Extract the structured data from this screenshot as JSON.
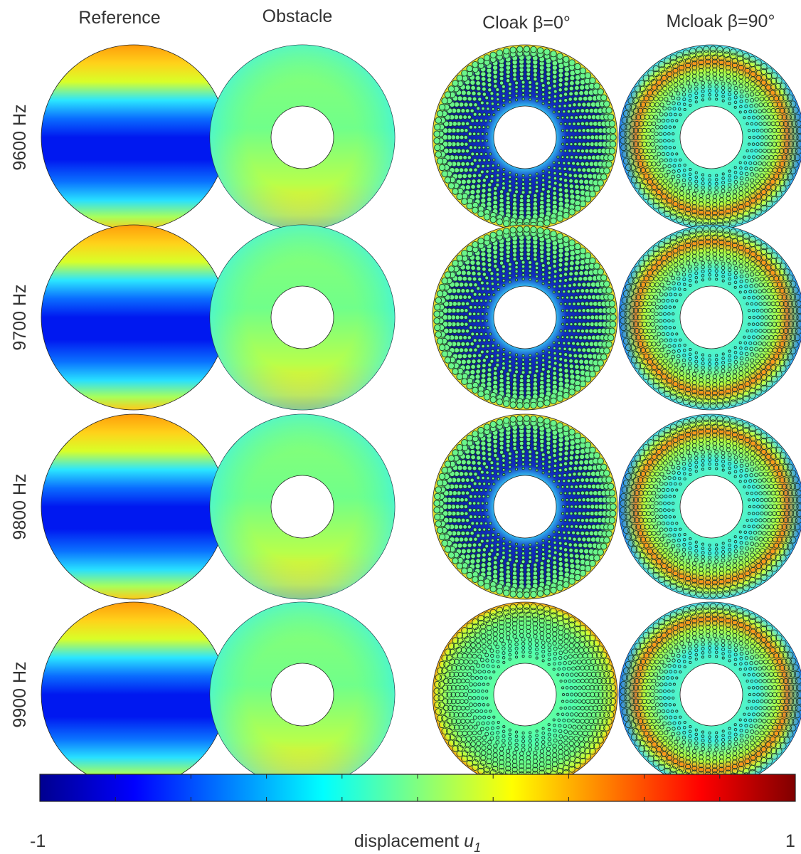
{
  "columns": [
    "Reference",
    "Obstacle",
    "Cloak β=0°",
    "Mcloak β=90°"
  ],
  "rows": [
    "9600 Hz",
    "9700 Hz",
    "9800 Hz",
    "9900 Hz"
  ],
  "colorbar": {
    "min_label": "-1",
    "max_label": "1",
    "label_text": "displacement ",
    "label_var": "u",
    "label_sub": "1",
    "colormap": "jet",
    "range": [
      -1,
      1
    ]
  },
  "colors": {
    "jet_stops": [
      "#00008f",
      "#0000ff",
      "#00ffff",
      "#80ff80",
      "#ffff00",
      "#ff0000",
      "#800000"
    ],
    "background": "#ffffff",
    "outline": "#333333"
  }
}
